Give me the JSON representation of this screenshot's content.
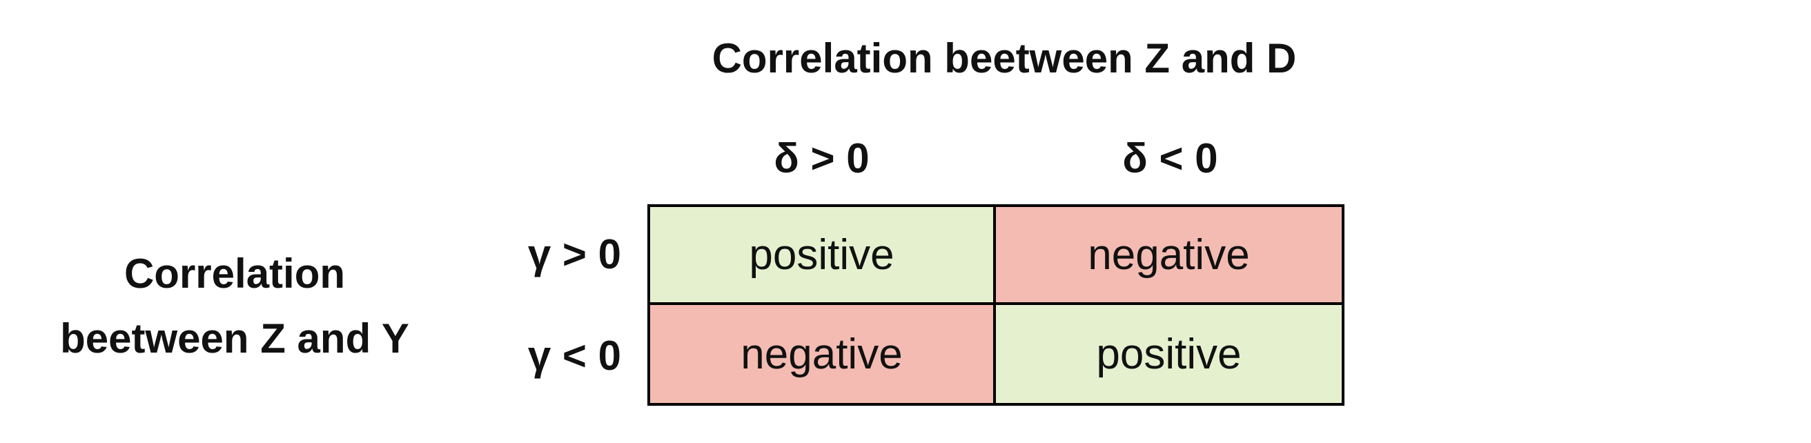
{
  "column_title": "Correlation beetween Z and D",
  "row_title": {
    "line1": "Correlation",
    "line2": "beetween Z and Y"
  },
  "column_headers": [
    "δ > 0",
    "δ < 0"
  ],
  "row_headers": [
    "γ > 0",
    "γ < 0"
  ],
  "cells": [
    [
      "positive",
      "negative"
    ],
    [
      "negative",
      "positive"
    ]
  ],
  "colors": {
    "positive": "#e5f0cf",
    "negative": "#f3bbb2",
    "border": "#000000"
  }
}
